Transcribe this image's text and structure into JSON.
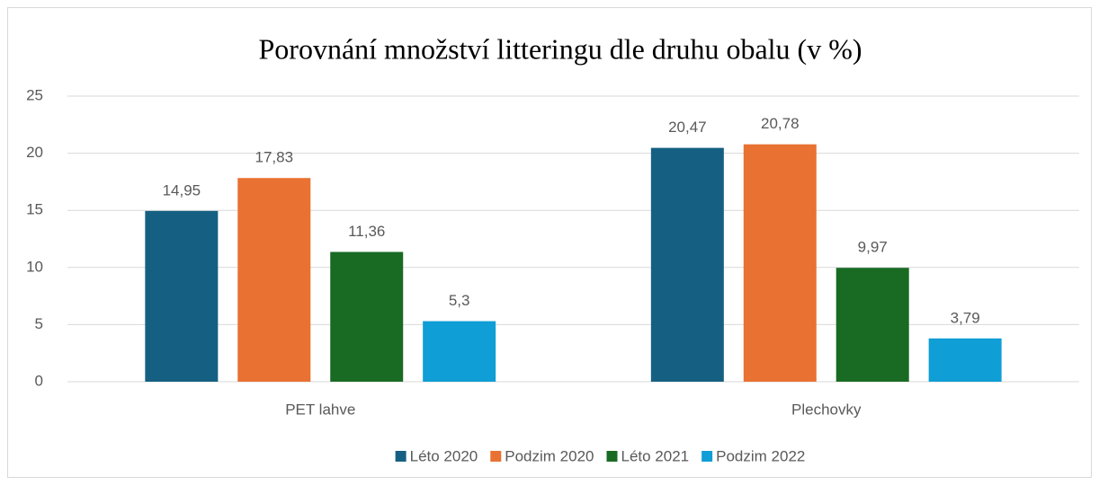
{
  "chart_data": {
    "type": "bar",
    "title": "Porovnání množství litteringu dle druhu obalu (v %)",
    "categories": [
      "PET lahve",
      "Plechovky"
    ],
    "series": [
      {
        "name": "Léto 2020",
        "color": "#156082",
        "values": [
          14.95,
          20.47
        ],
        "value_labels": [
          "14,95",
          "20,47"
        ]
      },
      {
        "name": "Podzim 2020",
        "color": "#e97132",
        "values": [
          17.83,
          20.78
        ],
        "value_labels": [
          "17,83",
          "20,78"
        ]
      },
      {
        "name": "Léto 2021",
        "color": "#196b24",
        "values": [
          11.36,
          9.97
        ],
        "value_labels": [
          "11,36",
          "9,97"
        ]
      },
      {
        "name": "Podzim 2022",
        "color": "#0f9ed5",
        "values": [
          5.3,
          3.79
        ],
        "value_labels": [
          "5,3",
          "3,79"
        ]
      }
    ],
    "ylim": [
      0,
      25
    ],
    "yticks": [
      0,
      5,
      10,
      15,
      20,
      25
    ],
    "grid": true,
    "legend": "bottom"
  }
}
